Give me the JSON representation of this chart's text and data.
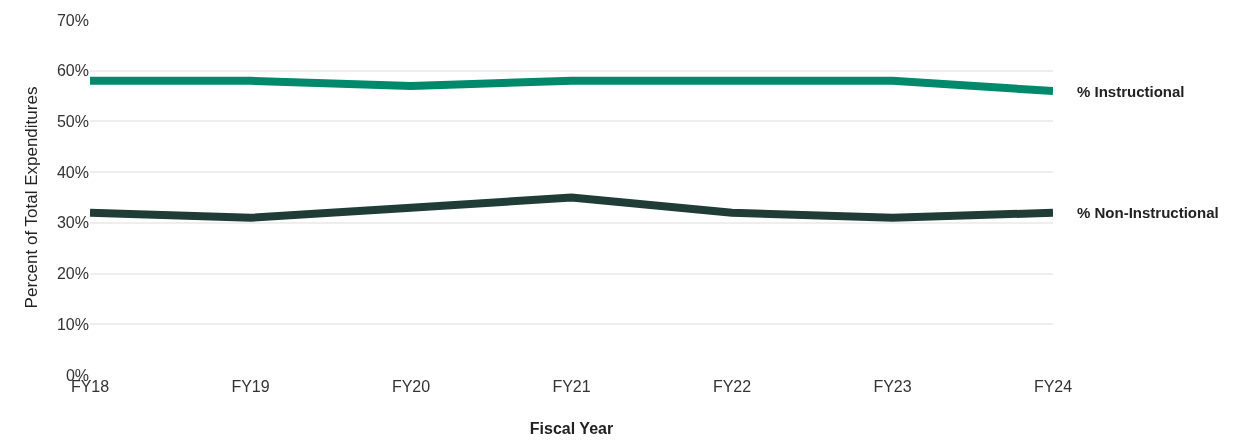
{
  "chart_data": {
    "type": "line",
    "xlabel": "Fiscal Year",
    "ylabel": "Percent of Total Expenditures",
    "categories": [
      "FY18",
      "FY19",
      "FY20",
      "FY21",
      "FY22",
      "FY23",
      "FY24"
    ],
    "series": [
      {
        "name": "% Instructional",
        "color": "#00896b",
        "values": [
          58,
          58,
          57,
          58,
          58,
          58,
          56
        ]
      },
      {
        "name": "% Non-Instructional",
        "color": "#1f3d36",
        "values": [
          32,
          31,
          33,
          35,
          32,
          31,
          32
        ]
      }
    ],
    "ylim": [
      0,
      70
    ],
    "yticks": [
      {
        "value": 0,
        "label": "0%"
      },
      {
        "value": 10,
        "label": "10%"
      },
      {
        "value": 20,
        "label": "20%"
      },
      {
        "value": 30,
        "label": "30%"
      },
      {
        "value": 40,
        "label": "40%"
      },
      {
        "value": 50,
        "label": "50%"
      },
      {
        "value": 60,
        "label": "60%"
      },
      {
        "value": 70,
        "label": "70%"
      }
    ],
    "grid": "y",
    "legend": false,
    "marker": "none",
    "line_style": "solid"
  }
}
